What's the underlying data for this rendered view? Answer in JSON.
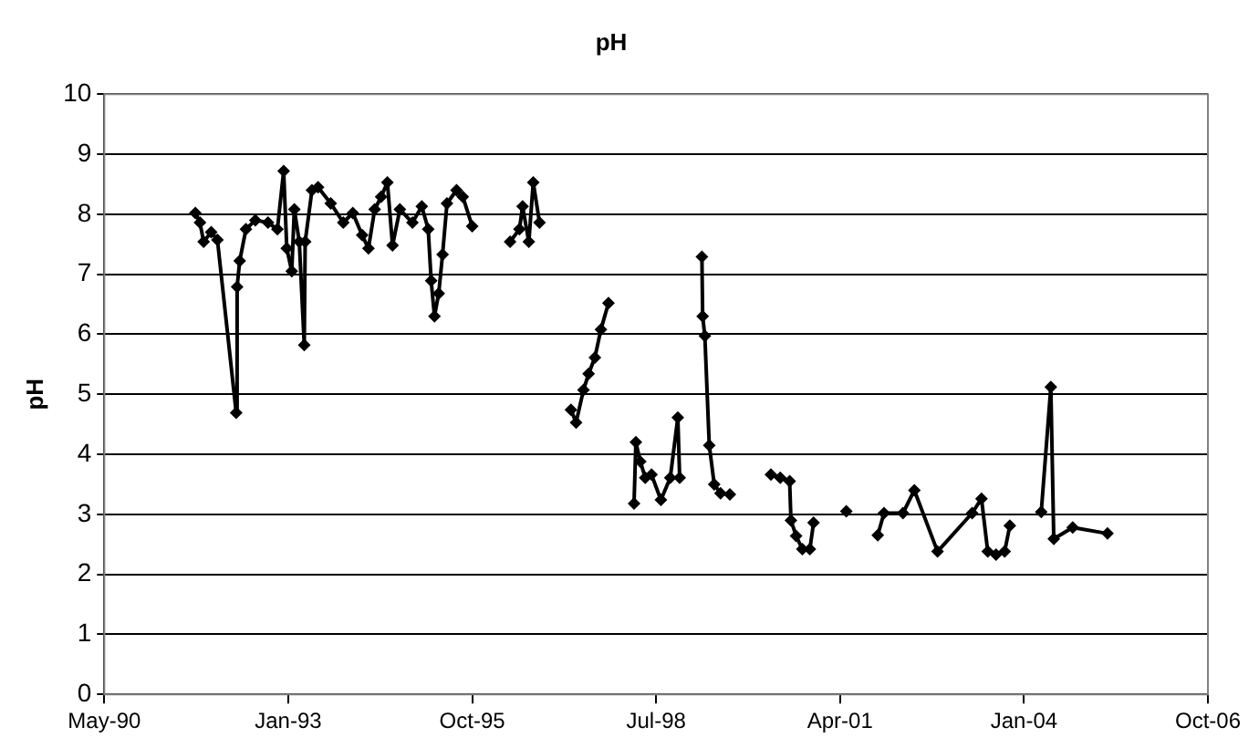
{
  "chart_data": {
    "type": "line",
    "title": "pH",
    "ylabel": "pH",
    "x": [
      "1991-09-13",
      "1991-10-08",
      "1991-10-28",
      "1991-12-08",
      "1992-01-11",
      "1992-04-22",
      "1992-04-27",
      "1992-05-11",
      "1992-06-14",
      "1992-08-04",
      "1992-10-12",
      "1992-12-02",
      "1993-01-05",
      "1993-01-22",
      "1993-02-18",
      "1993-03-04",
      "1993-03-31",
      "1993-04-27",
      "1993-05-02",
      "1993-06-08",
      "1993-07-11",
      "1993-09-18",
      "1993-11-25",
      "1994-01-16",
      "1994-03-08",
      "1994-04-11",
      "1994-05-15",
      "1994-06-19",
      "1994-07-23",
      "1994-08-20",
      "1994-09-29",
      "1994-12-06",
      "1995-01-26",
      "1995-03-02",
      "1995-03-18",
      "1995-04-05",
      "1995-04-28",
      "1995-05-19",
      "1995-06-12",
      "1995-08-03",
      "1995-09-06",
      "1995-10-27",
      "1996-01-15",
      "1996-05-20",
      "1996-07-10",
      "1996-07-27",
      "1996-08-30",
      "1996-09-23",
      "1996-10-27",
      "1997-01-15",
      "1997-04-16",
      "1997-05-14",
      "1997-06-23",
      "1997-07-21",
      "1997-08-24",
      "1997-09-26",
      "1997-11-06",
      "1998-01-10",
      "1998-03-25",
      "1998-04-04",
      "1998-04-28",
      "1998-05-25",
      "1998-06-28",
      "1998-08-18",
      "1998-10-08",
      "1998-11-18",
      "1998-11-28",
      "1999-01-20",
      "1999-03-29",
      "1999-04-02",
      "1999-04-14",
      "1999-05-08",
      "1999-06-04",
      "1999-07-08",
      "1999-08-28",
      "1999-12-01",
      "2000-04-07",
      "2000-05-28",
      "2000-07-18",
      "2000-07-25",
      "2000-08-22",
      "2000-09-25",
      "2000-11-05",
      "2000-11-25",
      "2001-02-15",
      "2001-05-22",
      "2001-08-15",
      "2001-11-09",
      "2001-12-13",
      "2002-03-26",
      "2002-05-27",
      "2002-09-30",
      "2003-04-06",
      "2003-05-27",
      "2003-06-30",
      "2003-08-14",
      "2003-09-30",
      "2003-10-28",
      "2004-01-20",
      "2004-04-16",
      "2004-06-07",
      "2004-06-23",
      "2004-10-04",
      "2005-04-11"
    ],
    "series": [
      {
        "color": "#000000",
        "values": [
          8.02,
          7.86,
          7.54,
          7.7,
          7.57,
          4.69,
          6.79,
          7.22,
          7.75,
          7.9,
          7.86,
          7.75,
          8.72,
          7.43,
          7.05,
          8.08,
          7.54,
          5.82,
          7.54,
          8.4,
          8.45,
          8.18,
          7.86,
          8.02,
          7.65,
          7.43,
          8.08,
          8.29,
          8.53,
          7.48,
          8.08,
          7.86,
          8.13,
          7.75,
          6.89,
          6.3,
          6.68,
          7.33,
          8.18,
          8.4,
          8.29,
          7.8,
          null,
          7.54,
          7.75,
          8.13,
          7.54,
          8.53,
          7.86,
          null,
          4.74,
          4.53,
          5.07,
          5.34,
          5.61,
          6.08,
          6.52,
          null,
          3.18,
          4.2,
          3.88,
          3.61,
          3.66,
          3.24,
          3.61,
          4.61,
          3.61,
          null,
          7.29,
          6.3,
          5.97,
          4.15,
          3.5,
          3.35,
          3.33,
          null,
          3.66,
          3.61,
          3.55,
          2.9,
          2.64,
          2.42,
          2.42,
          2.86,
          null,
          3.05,
          null,
          2.65,
          3.02,
          3.02,
          3.4,
          2.38,
          3.02,
          3.26,
          2.38,
          2.33,
          2.38,
          2.81,
          null,
          3.04,
          5.12,
          2.59,
          2.78,
          2.68
        ]
      }
    ],
    "xlim": [
      "1990-05-06",
      "2006-10-09"
    ],
    "xticks": [
      {
        "value": "1990-05-06",
        "label": "May-90"
      },
      {
        "value": "1993-01-30",
        "label": "Jan-93"
      },
      {
        "value": "1995-10-27",
        "label": "Oct-95"
      },
      {
        "value": "1998-07-23",
        "label": "Jul-98"
      },
      {
        "value": "2001-04-18",
        "label": "Apr-01"
      },
      {
        "value": "2004-01-13",
        "label": "Jan-04"
      },
      {
        "value": "2006-10-09",
        "label": "Oct-06"
      }
    ],
    "ylim": [
      0,
      10
    ],
    "yticks": [
      0,
      1,
      2,
      3,
      4,
      5,
      6,
      7,
      8,
      9,
      10
    ],
    "grid": "y",
    "legend": false,
    "marker": "diamond",
    "line_style": "solid"
  }
}
